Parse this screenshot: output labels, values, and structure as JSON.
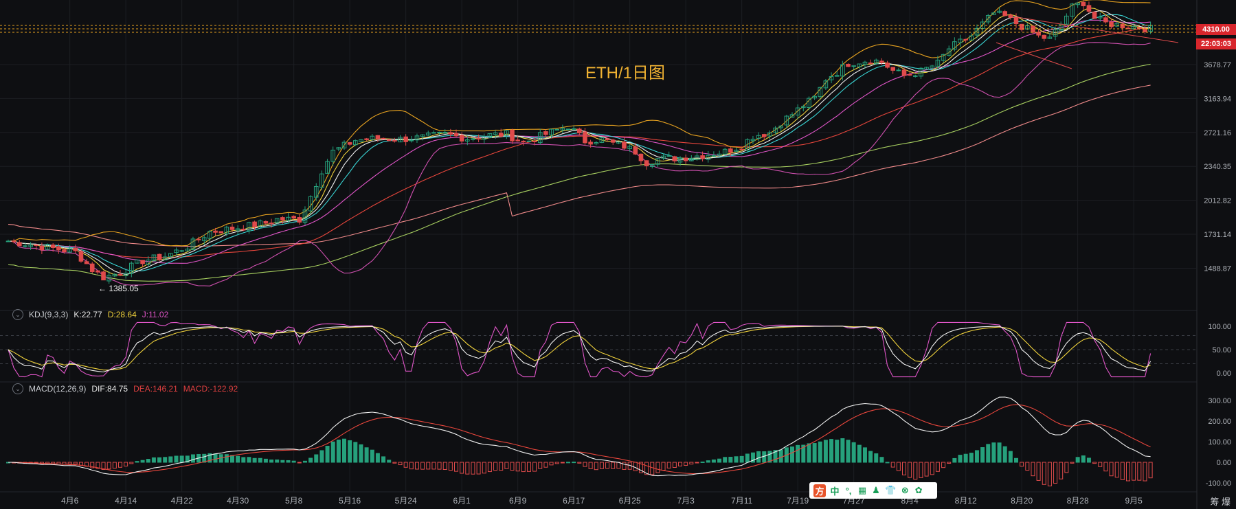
{
  "chart_data": {
    "type": "candlestick",
    "title": "ETH/1日图",
    "y_axis": {
      "scale": "log",
      "ticks": [
        "3678.77",
        "3163.94",
        "2721.16",
        "2340.35",
        "2012.82",
        "1731.14",
        "1488.87"
      ],
      "range": [
        1280,
        4900
      ]
    },
    "x_axis": {
      "tick_labels": [
        "4月6",
        "4月14",
        "4月22",
        "4月30",
        "5月8",
        "5月16",
        "5月24",
        "6月1",
        "6月9",
        "6月17",
        "6月25",
        "7月3",
        "7月11",
        "7月19",
        "7月27",
        "8月4",
        "8月12",
        "8月20",
        "8月28",
        "9月5"
      ]
    },
    "annotations": {
      "current_price": "4310.00",
      "countdown": "22:03:03",
      "low_label": "← 1385.05"
    },
    "close_path": [
      [
        0,
        1680
      ],
      [
        12,
        1600
      ],
      [
        15,
        1480
      ],
      [
        17,
        1430
      ],
      [
        20,
        1460
      ],
      [
        24,
        1540
      ],
      [
        28,
        1570
      ],
      [
        32,
        1640
      ],
      [
        36,
        1750
      ],
      [
        42,
        1790
      ],
      [
        46,
        1820
      ],
      [
        48,
        1850
      ],
      [
        52,
        1850
      ],
      [
        54,
        2050
      ],
      [
        56,
        2300
      ],
      [
        58,
        2500
      ],
      [
        62,
        2630
      ],
      [
        66,
        2650
      ],
      [
        70,
        2640
      ],
      [
        74,
        2660
      ],
      [
        78,
        2700
      ],
      [
        82,
        2650
      ],
      [
        86,
        2690
      ],
      [
        89,
        2700
      ],
      [
        92,
        2600
      ],
      [
        96,
        2700
      ],
      [
        100,
        2800
      ],
      [
        103,
        2620
      ],
      [
        106,
        2640
      ],
      [
        108,
        2590
      ],
      [
        110,
        2560
      ],
      [
        112,
        2500
      ],
      [
        114,
        2380
      ],
      [
        116,
        2420
      ],
      [
        120,
        2430
      ],
      [
        124,
        2460
      ],
      [
        128,
        2500
      ],
      [
        131,
        2570
      ],
      [
        133,
        2680
      ],
      [
        136,
        2720
      ],
      [
        138,
        2850
      ],
      [
        140,
        2950
      ],
      [
        142,
        3070
      ],
      [
        144,
        3170
      ],
      [
        146,
        3450
      ],
      [
        148,
        3560
      ],
      [
        150,
        3700
      ],
      [
        152,
        3730
      ],
      [
        154,
        3760
      ],
      [
        156,
        3720
      ],
      [
        158,
        3580
      ],
      [
        160,
        3500
      ],
      [
        163,
        3570
      ],
      [
        166,
        3700
      ],
      [
        168,
        3950
      ],
      [
        172,
        4180
      ],
      [
        174,
        4400
      ],
      [
        176,
        4620
      ],
      [
        178,
        4550
      ],
      [
        180,
        4420
      ],
      [
        182,
        4300
      ],
      [
        184,
        4170
      ],
      [
        186,
        4120
      ],
      [
        188,
        4400
      ],
      [
        190,
        4750
      ],
      [
        192,
        4850
      ],
      [
        194,
        4520
      ],
      [
        196,
        4420
      ],
      [
        198,
        4390
      ],
      [
        200,
        4370
      ],
      [
        202,
        4340
      ],
      [
        204,
        4310
      ]
    ],
    "kdj": {
      "name": "KDJ(9,3,3)",
      "K": "22.77",
      "D": "28.64",
      "J": "11.02",
      "ticks": [
        "100.00",
        "50.00",
        "0.00"
      ],
      "range": [
        -10,
        110
      ]
    },
    "macd": {
      "name": "MACD(12,26,9)",
      "DIF": "84.75",
      "DEA": "146.21",
      "MACD": "-122.92",
      "ticks": [
        "300.00",
        "200.00",
        "100.00",
        "0.00",
        "-100.00"
      ],
      "range": [
        -130,
        330
      ]
    },
    "colors": {
      "up": "#26a17c",
      "down": "#e04b4b",
      "background": "#0e0f12",
      "ma5": "#f2f2f2",
      "ma10": "#f0d23c",
      "ma20": "#e055c8",
      "ma30": "#3ad5d5",
      "boll": "#e8a320",
      "boll_lower": "#d050b0",
      "ma60": "#e8463c",
      "ma120": "#a8d060",
      "ma200": "#f08a8a"
    }
  },
  "toolbar": {
    "items": [
      "方",
      "中",
      "°,",
      "▦",
      "♟",
      "👕",
      "⊗",
      "✿"
    ]
  },
  "corner_label": "筹 爆"
}
